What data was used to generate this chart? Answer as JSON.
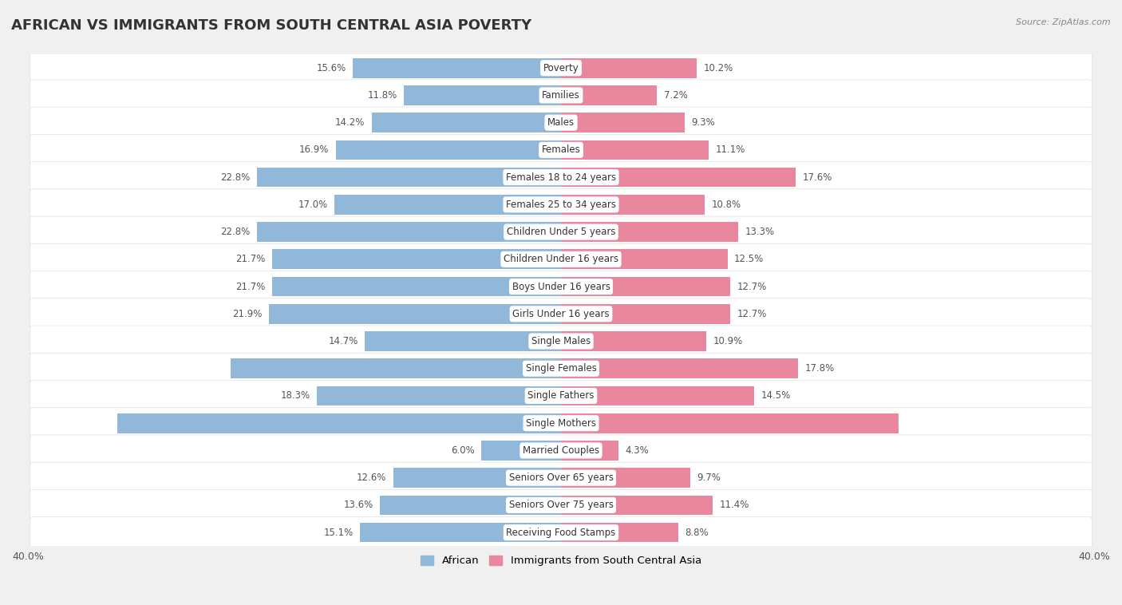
{
  "title": "AFRICAN VS IMMIGRANTS FROM SOUTH CENTRAL ASIA POVERTY",
  "source": "Source: ZipAtlas.com",
  "categories": [
    "Poverty",
    "Families",
    "Males",
    "Females",
    "Females 18 to 24 years",
    "Females 25 to 34 years",
    "Children Under 5 years",
    "Children Under 16 years",
    "Boys Under 16 years",
    "Girls Under 16 years",
    "Single Males",
    "Single Females",
    "Single Fathers",
    "Single Mothers",
    "Married Couples",
    "Seniors Over 65 years",
    "Seniors Over 75 years",
    "Receiving Food Stamps"
  ],
  "african": [
    15.6,
    11.8,
    14.2,
    16.9,
    22.8,
    17.0,
    22.8,
    21.7,
    21.7,
    21.9,
    14.7,
    24.8,
    18.3,
    33.3,
    6.0,
    12.6,
    13.6,
    15.1
  ],
  "immigrants": [
    10.2,
    7.2,
    9.3,
    11.1,
    17.6,
    10.8,
    13.3,
    12.5,
    12.7,
    12.7,
    10.9,
    17.8,
    14.5,
    25.3,
    4.3,
    9.7,
    11.4,
    8.8
  ],
  "african_color": "#91b8d9",
  "immigrants_color": "#e9879f",
  "xlim": 40.0,
  "legend_african": "African",
  "legend_immigrants": "Immigrants from South Central Asia",
  "bar_height": 0.72,
  "background_color": "#f0f0f0",
  "row_bg_color": "#f7f7f7",
  "title_fontsize": 13,
  "label_fontsize": 8.5,
  "value_fontsize": 8.5,
  "african_white_labels": [
    "Single Females",
    "Single Mothers"
  ],
  "immigrants_white_labels": [
    "Single Mothers"
  ]
}
